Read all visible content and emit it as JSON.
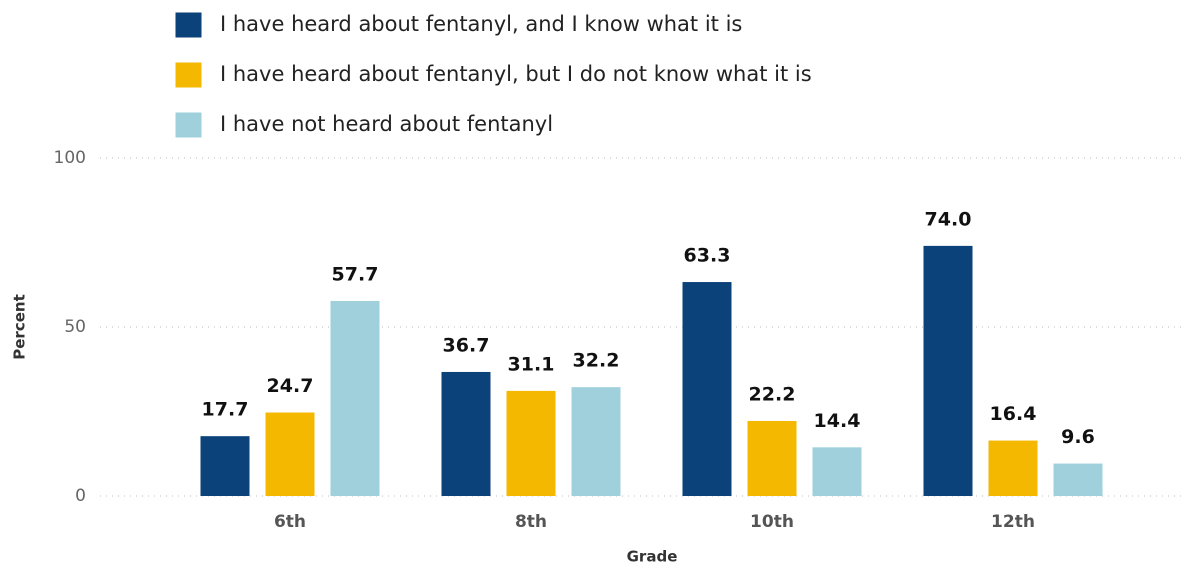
{
  "chart_data": {
    "type": "bar",
    "categories": [
      "6th",
      "8th",
      "10th",
      "12th"
    ],
    "series": [
      {
        "name": "I have heard about fentanyl, and I know what it is",
        "color": "#0b4279",
        "values": [
          17.7,
          36.7,
          63.3,
          74.0
        ],
        "value_labels": [
          "17.7",
          "36.7",
          "63.3",
          "74.0"
        ]
      },
      {
        "name": "I have heard about fentanyl, but I do not know what it is",
        "color": "#f5b800",
        "values": [
          24.7,
          31.1,
          22.2,
          16.4
        ],
        "value_labels": [
          "24.7",
          "31.1",
          "22.2",
          "16.4"
        ]
      },
      {
        "name": "I have not heard about fentanyl",
        "color": "#9fd0dc",
        "values": [
          57.7,
          32.2,
          14.4,
          9.6
        ],
        "value_labels": [
          "57.7",
          "32.2",
          "14.4",
          "9.6"
        ]
      }
    ],
    "xlabel": "Grade",
    "ylabel": "Percent",
    "ylim": [
      0,
      100
    ],
    "yticks": [
      0,
      50,
      100
    ],
    "grid": true,
    "legend": "top"
  }
}
